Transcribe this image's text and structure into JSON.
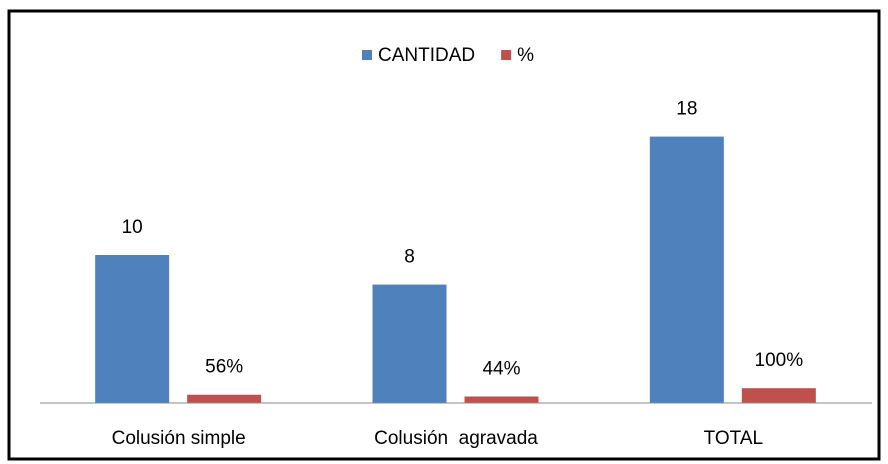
{
  "chart_data": {
    "type": "bar",
    "categories": [
      "Colusión simple",
      "Colusión  agravada",
      "TOTAL"
    ],
    "series": [
      {
        "name": "CANTIDAD",
        "color": "#4f81bd",
        "values": [
          10,
          8,
          18
        ]
      },
      {
        "name": "%",
        "color": "#c0504d",
        "values": [
          0.56,
          0.44,
          1.0
        ],
        "value_labels": [
          "56%",
          "44%",
          "100%"
        ]
      }
    ],
    "ylim": [
      0,
      20
    ],
    "legend": "top"
  }
}
